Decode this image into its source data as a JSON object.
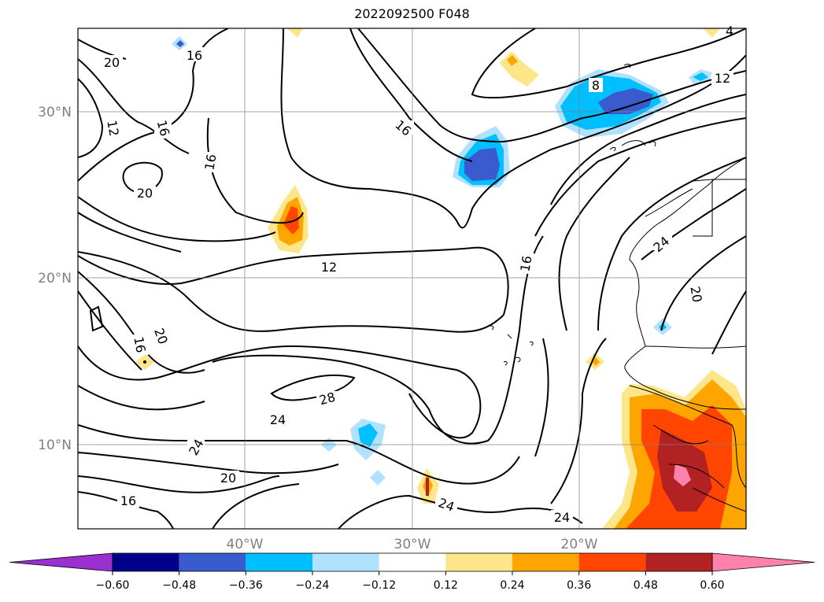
{
  "title": "2022092500 F048",
  "map": {
    "lat_labels": [
      "30°N",
      "20°N",
      "10°N"
    ],
    "lon_labels": [
      "40°W",
      "30°W",
      "20°W"
    ],
    "contour_labels": [
      "20",
      "16",
      "12",
      "16",
      "16",
      "20",
      "16",
      "12",
      "16",
      "8",
      "12",
      "24",
      "20",
      "16",
      "20",
      "28",
      "24",
      "24",
      "20",
      "16",
      "24",
      "24",
      "4"
    ]
  },
  "colorbar": {
    "ticks": [
      "−0.60",
      "−0.48",
      "−0.36",
      "−0.24",
      "−0.12",
      "0.12",
      "0.24",
      "0.36",
      "0.48",
      "0.60"
    ],
    "colors": [
      "#9b30d0",
      "#00008b",
      "#3a5bcd",
      "#00bfff",
      "#b0e2ff",
      "#ffffff",
      "#fde68a",
      "#ffa500",
      "#ff4500",
      "#b22222",
      "#ff82ab"
    ]
  }
}
